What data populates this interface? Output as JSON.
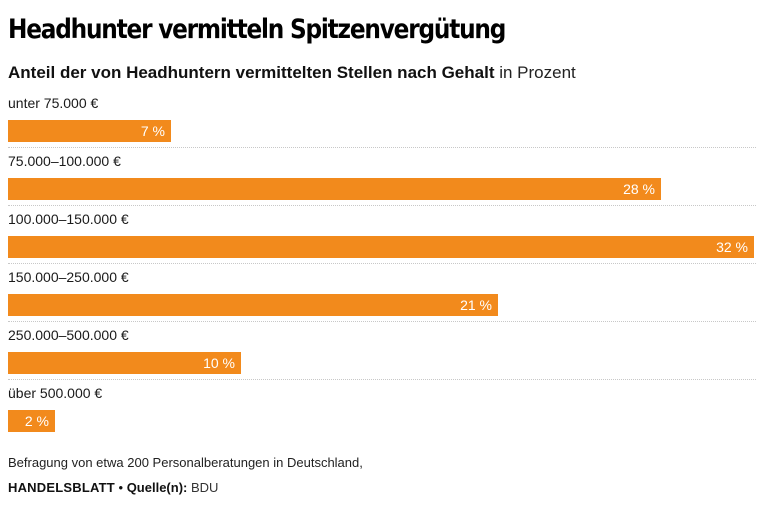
{
  "chart_data": {
    "type": "bar",
    "orientation": "horizontal",
    "title": "Headhunter vermitteln Spitzenvergütung",
    "subtitle": "Anteil der von Headhuntern vermittelten Stellen nach Gehalt",
    "unit_label": "in Prozent",
    "categories": [
      "unter 75.000 €",
      "75.000–100.000 €",
      "100.000–150.000 €",
      "150.000–250.000 €",
      "250.000–500.000 €",
      "über 500.000 €"
    ],
    "values": [
      7,
      28,
      32,
      21,
      10,
      2
    ],
    "value_labels": [
      "7 %",
      "28 %",
      "32 %",
      "21 %",
      "10 %",
      "2 %"
    ],
    "xlim": [
      0,
      32
    ],
    "grid": false,
    "bar_color": "#f28a1c",
    "value_label_color": "#ffffff"
  },
  "footer": {
    "note": "Befragung von etwa 200 Personalberatungen in Deutschland,",
    "brand": "HANDELSBLATT",
    "separator": "•",
    "source_label": "Quelle(n):",
    "source_value": "BDU"
  }
}
